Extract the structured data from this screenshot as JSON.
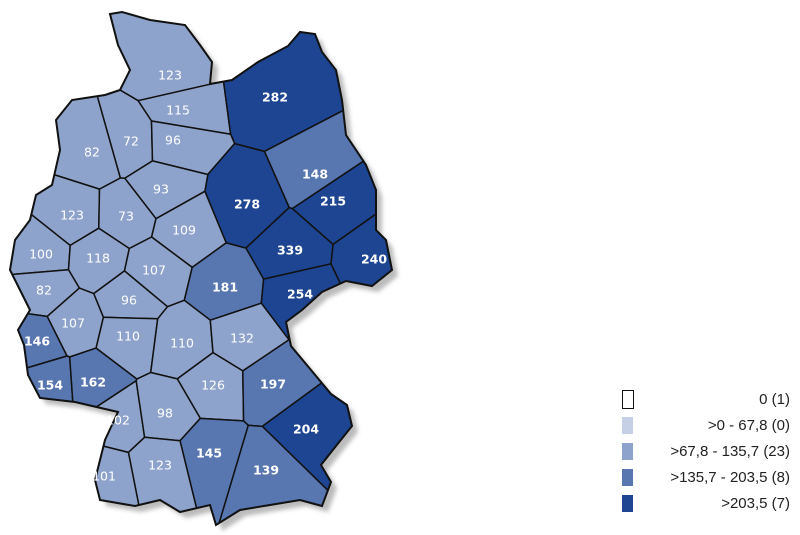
{
  "classes": [
    {
      "label": "0 (1)",
      "color": "#ffffff"
    },
    {
      "label": ">0 - 67,8 (0)",
      "color": "#c5d0e6"
    },
    {
      "label": ">67,8 - 135,7 (23)",
      "color": "#8ea3cb"
    },
    {
      "label": ">135,7 - 203,5 (8)",
      "color": "#5876b0"
    },
    {
      "label": ">203,5 (7)",
      "color": "#1e4591"
    }
  ],
  "regions": [
    {
      "value": "123",
      "class": 2
    },
    {
      "value": "115",
      "class": 2
    },
    {
      "value": "282",
      "class": 4
    },
    {
      "value": "82",
      "class": 2
    },
    {
      "value": "72",
      "class": 2
    },
    {
      "value": "96",
      "class": 2
    },
    {
      "value": "148",
      "class": 3
    },
    {
      "value": "215",
      "class": 4
    },
    {
      "value": "278",
      "class": 4
    },
    {
      "value": "93",
      "class": 2
    },
    {
      "value": "123",
      "class": 2
    },
    {
      "value": "73",
      "class": 2
    },
    {
      "value": "109",
      "class": 2
    },
    {
      "value": "100",
      "class": 2
    },
    {
      "value": "118",
      "class": 2
    },
    {
      "value": "107",
      "class": 2
    },
    {
      "value": "339",
      "class": 4
    },
    {
      "value": "240",
      "class": 4
    },
    {
      "value": "181",
      "class": 3
    },
    {
      "value": "254",
      "class": 4
    },
    {
      "value": "82",
      "class": 2
    },
    {
      "value": "96",
      "class": 2
    },
    {
      "value": "107",
      "class": 2
    },
    {
      "value": "146",
      "class": 3
    },
    {
      "value": "110",
      "class": 2
    },
    {
      "value": "110",
      "class": 2
    },
    {
      "value": "132",
      "class": 2
    },
    {
      "value": "154",
      "class": 3
    },
    {
      "value": "162",
      "class": 3
    },
    {
      "value": "126",
      "class": 2
    },
    {
      "value": "197",
      "class": 3
    },
    {
      "value": "204",
      "class": 4
    },
    {
      "value": "102",
      "class": 2
    },
    {
      "value": "98",
      "class": 2
    },
    {
      "value": "145",
      "class": 3
    },
    {
      "value": "139",
      "class": 3
    },
    {
      "value": "123",
      "class": 2
    },
    {
      "value": "101",
      "class": 2
    }
  ]
}
